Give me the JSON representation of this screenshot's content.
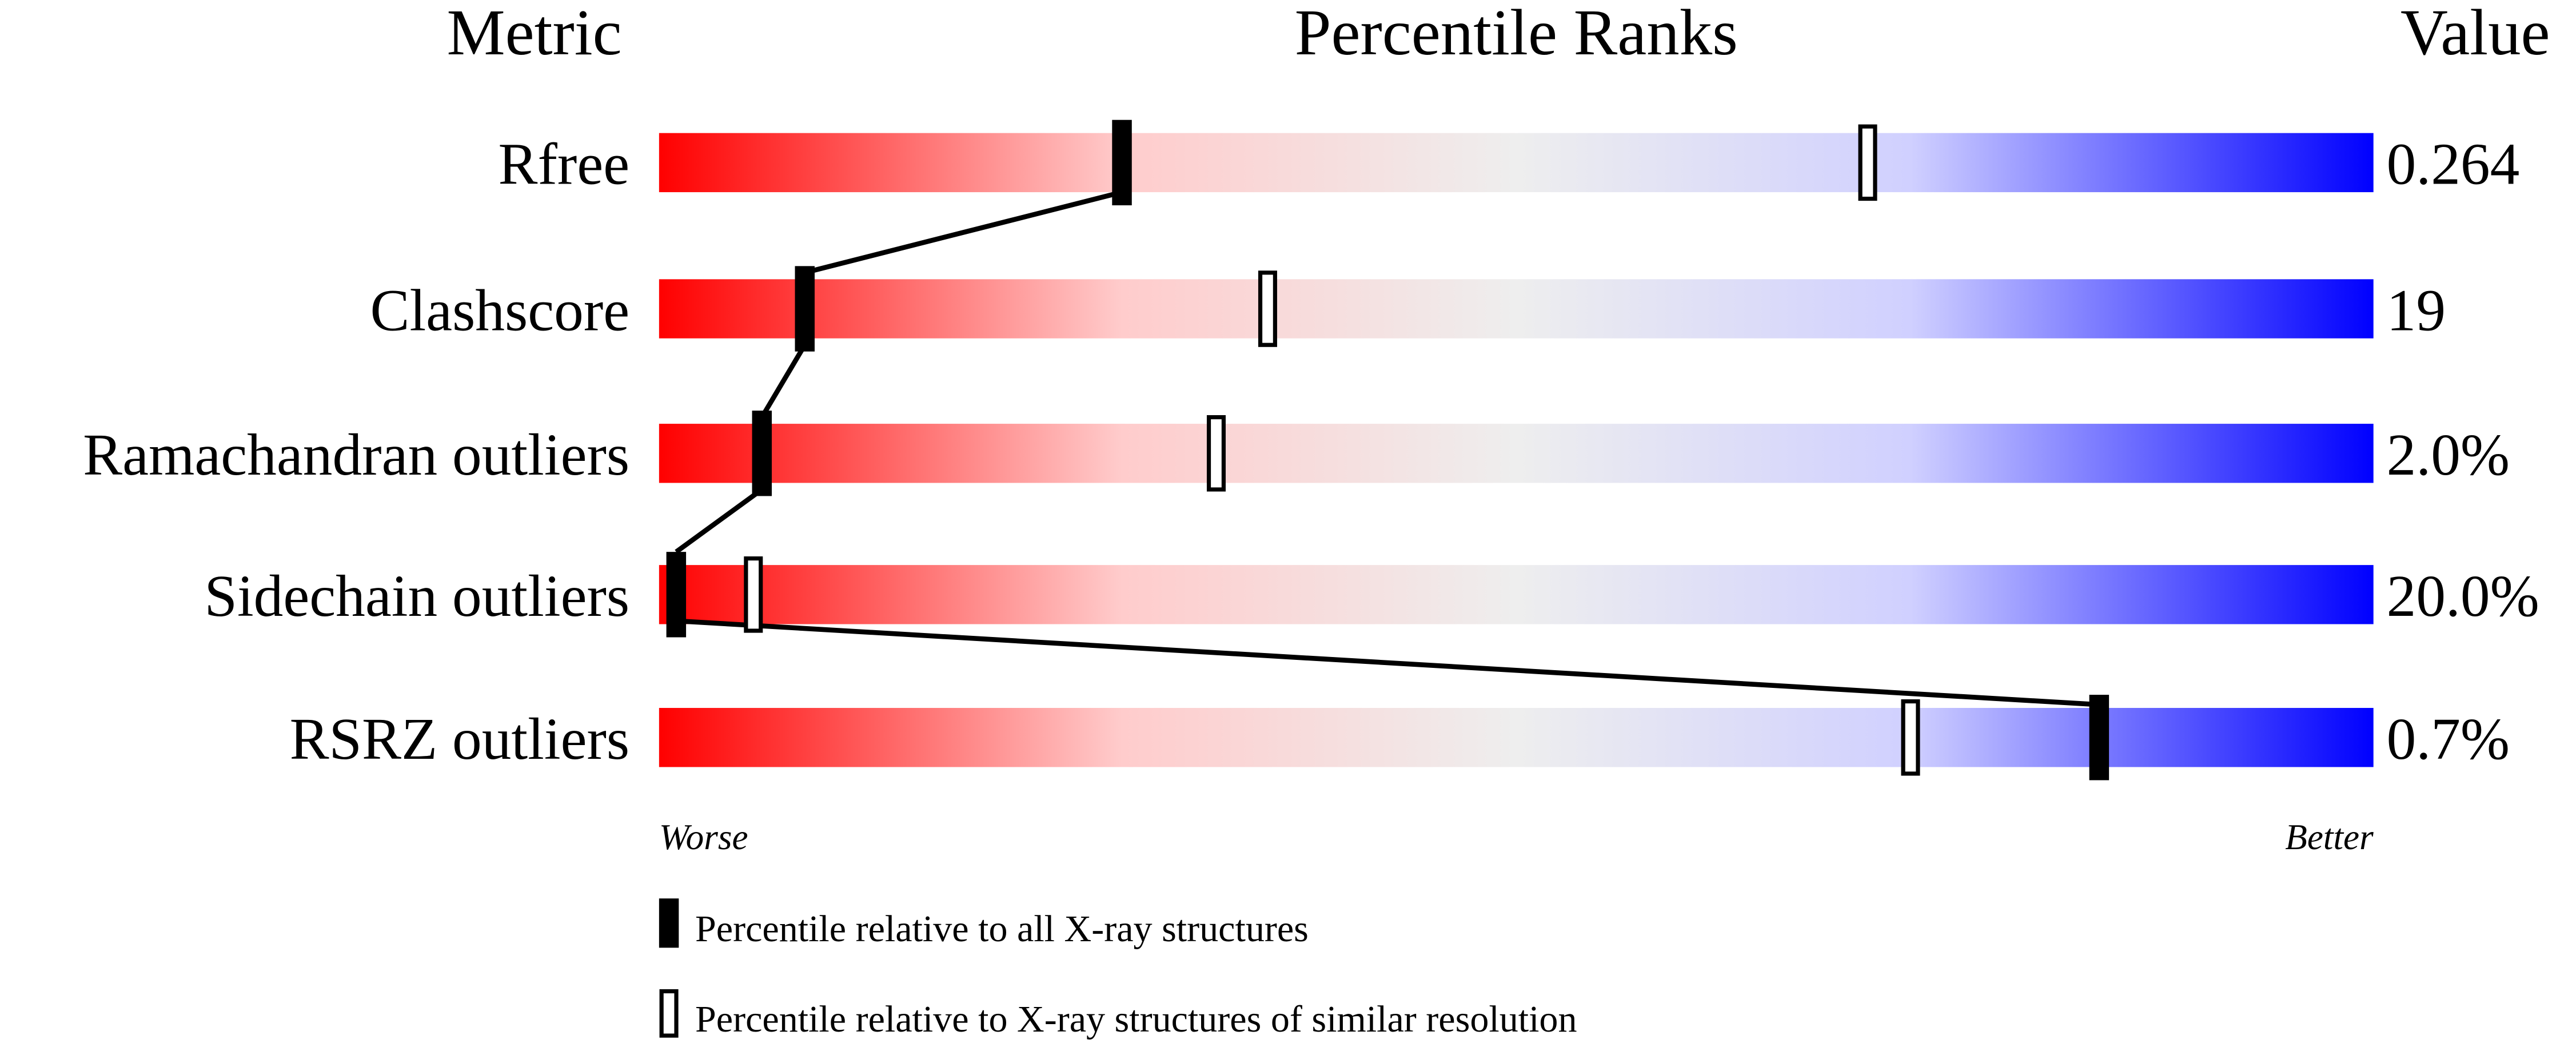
{
  "chart_data": {
    "type": "percentile-bar",
    "headers": {
      "metric": "Metric",
      "ranks": "Percentile Ranks",
      "value": "Value"
    },
    "axis": {
      "min_label": "Worse",
      "max_label": "Better",
      "range": [
        0,
        100
      ]
    },
    "gradient_colors": [
      "#ff0000",
      "#ffcccc",
      "#eeeeee",
      "#d0d0ff",
      "#0000ff"
    ],
    "rows": [
      {
        "metric": "Rfree",
        "value": "0.264",
        "percentile_all": 27,
        "percentile_similar": 70.5
      },
      {
        "metric": "Clashscore",
        "value": "19",
        "percentile_all": 8.5,
        "percentile_similar": 35.5
      },
      {
        "metric": "Ramachandran outliers",
        "value": "2.0%",
        "percentile_all": 6,
        "percentile_similar": 32.5
      },
      {
        "metric": "Sidechain outliers",
        "value": "20.0%",
        "percentile_all": 1,
        "percentile_similar": 5.5
      },
      {
        "metric": "RSRZ outliers",
        "value": "0.7%",
        "percentile_all": 84,
        "percentile_similar": 73
      }
    ],
    "legend": [
      {
        "marker": "filled",
        "label": "Percentile relative to all X-ray structures"
      },
      {
        "marker": "open",
        "label": "Percentile relative to X-ray structures of similar resolution"
      }
    ]
  }
}
